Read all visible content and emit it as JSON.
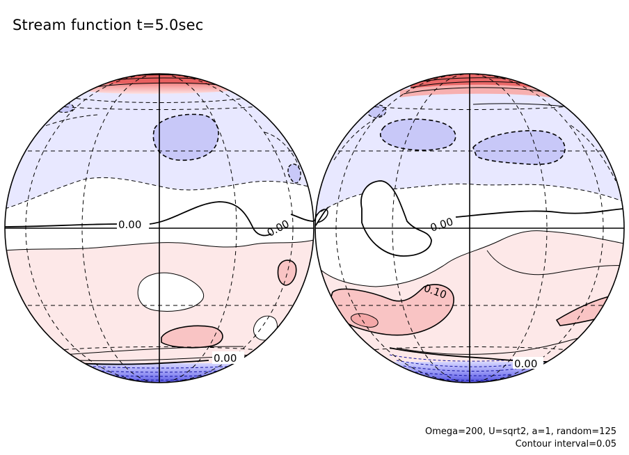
{
  "title": "Stream function t=5.0sec",
  "footer": {
    "params": "Omega=200, U=sqrt2, a=1, random=125",
    "contour_interval": "Contour interval=0.05"
  },
  "contour_labels": {
    "left_equator": "0.00",
    "left_mid": "0.00",
    "left_south": "0.00",
    "right_equator": "0.00",
    "right_positive": "0.10",
    "right_south": "0.00"
  },
  "colors": {
    "positive_light": "#fde8e8",
    "positive_mid": "#f9c4c4",
    "positive_strong": "#e85050",
    "negative_light": "#e8e8ff",
    "negative_mid": "#c8c8f8",
    "negative_strong": "#3030d0"
  }
}
